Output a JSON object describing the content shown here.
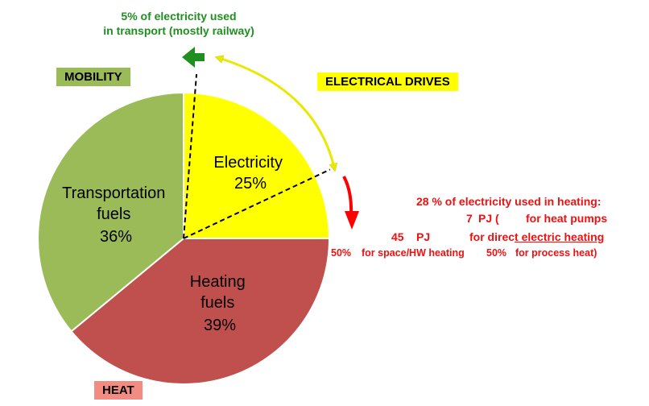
{
  "colors": {
    "mobility": "#9bbb59",
    "heat": "#c0504d",
    "electricity": "#ffff00",
    "transport_arrow": "#1f8f1f",
    "heating_arrow": "#ff0000",
    "drive_arrow": "#e8e800"
  },
  "chart_data": {
    "type": "pie",
    "title": "",
    "slices": [
      {
        "name": "Electricity",
        "value": 25,
        "label": "25%"
      },
      {
        "name": "Heating fuels",
        "value": 39,
        "label": "39%"
      },
      {
        "name": "Transportation fuels",
        "value": 36,
        "label": "36%"
      }
    ],
    "electricity_split": {
      "transport_pct": 5,
      "heating_pct": 28
    }
  },
  "labels": {
    "mobility": "MOBILITY",
    "electrical_drives": "ELECTRICAL DRIVES",
    "heat": "HEAT",
    "transport_note_line1": "5% of electricity used",
    "transport_note_line2": "in transport (mostly railway)",
    "slice_electricity_line1": "Electricity",
    "slice_electricity_line2": "25%",
    "slice_heating_line1": "Heating",
    "slice_heating_line2": "fuels",
    "slice_heating_line3": "39%",
    "slice_transport_line1": "Transportation",
    "slice_transport_line2": "fuels",
    "slice_transport_line3": "36%"
  },
  "heating_note": {
    "line1": "28 % of electricity used in heating:",
    "hp_value": "7",
    "hp_unit": "PJ (",
    "hp_text": "for heat pumps",
    "de_value": "45",
    "de_unit": "PJ",
    "de_text_a": "for direc",
    "de_text_b": "t electric heating",
    "pct_space": "50%",
    "space_text": "for space/HW heating",
    "pct_process": "50%",
    "process_text": "for process heat)"
  }
}
